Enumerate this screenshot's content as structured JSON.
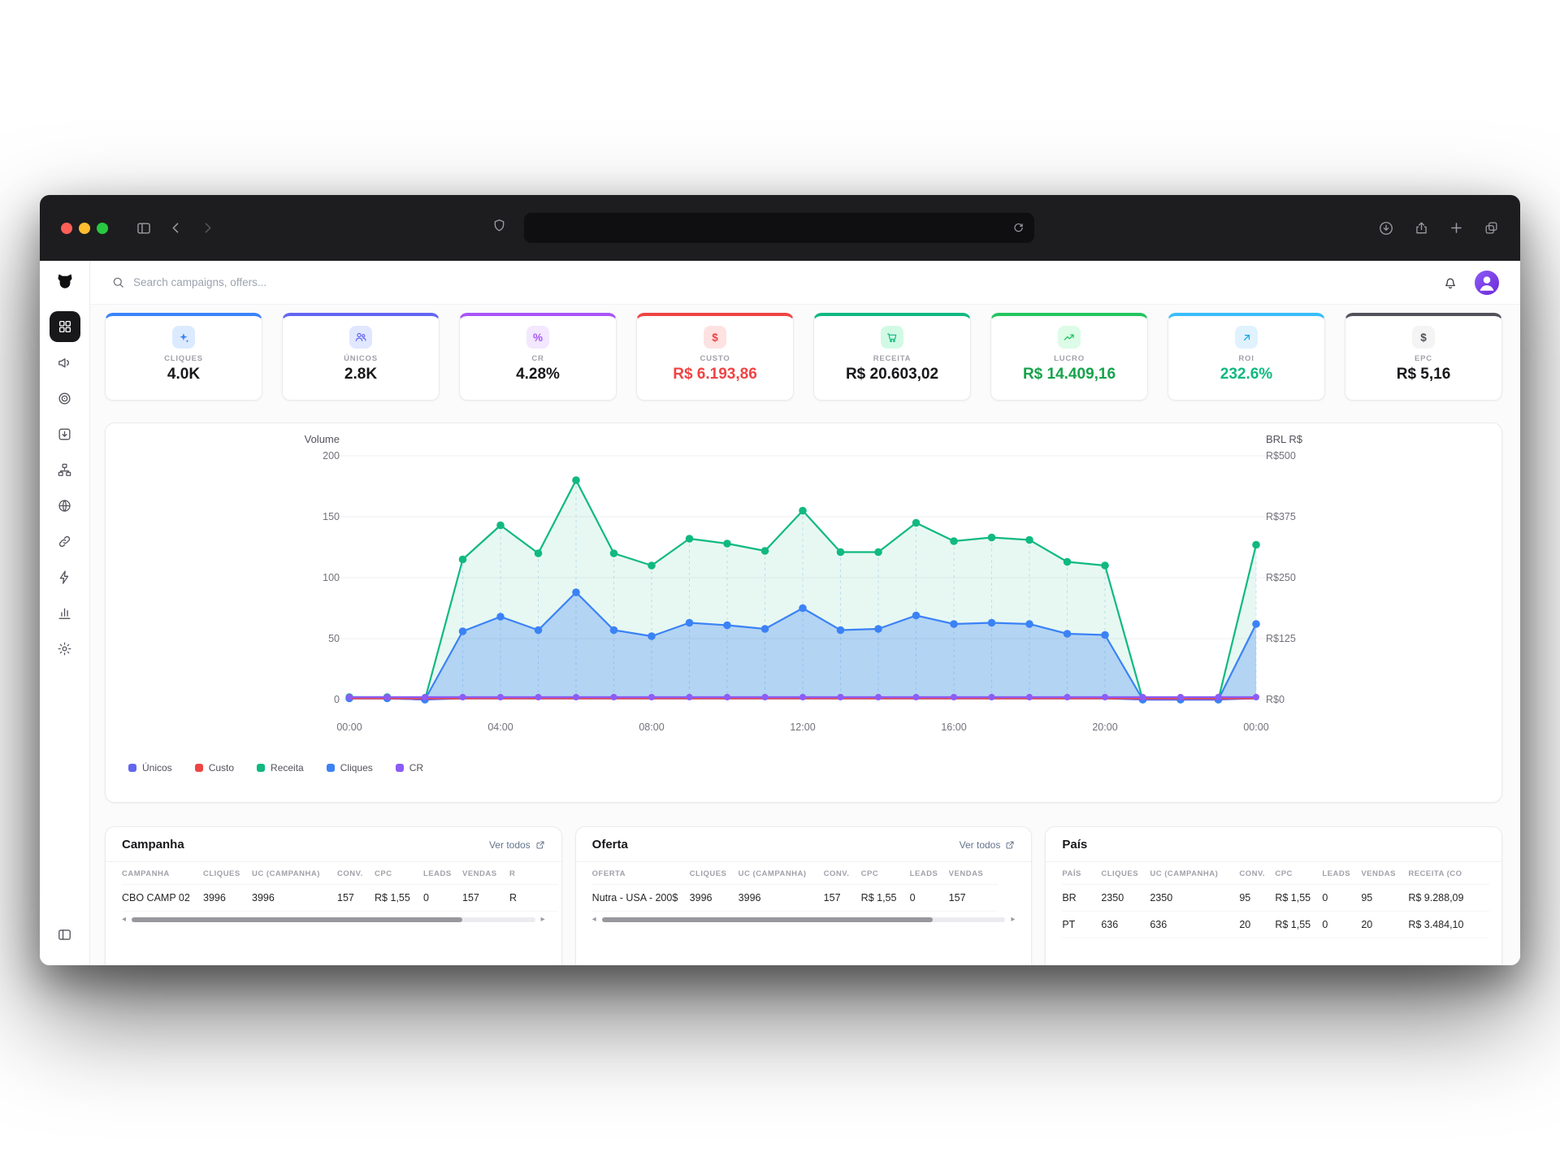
{
  "chrome": {
    "traffic_lights": [
      "#ff5f57",
      "#febc2e",
      "#28c840"
    ],
    "address_value": "",
    "icons": [
      "sidebar-toggle",
      "back",
      "forward",
      "shield",
      "reload",
      "downloads",
      "share",
      "new-tab",
      "tab-overview"
    ]
  },
  "topbar": {
    "search_placeholder": "Search campaigns, offers...",
    "icons": [
      "search",
      "bell",
      "avatar"
    ]
  },
  "sidebar": {
    "logo": "dog-logo",
    "items": [
      "dashboard",
      "campaigns",
      "tracking",
      "integrations",
      "structure",
      "domains",
      "links",
      "automations",
      "reports",
      "settings"
    ],
    "bottom": "collapse-sidebar"
  },
  "kpis": [
    {
      "label": "CLIQUES",
      "value": "4.0K",
      "accent": "#3b82f6",
      "icon": "sparkles-icon",
      "icon_bg": "#dbeafe",
      "icon_color": "#3b82f6",
      "value_color": "#18181b"
    },
    {
      "label": "ÚNICOS",
      "value": "2.8K",
      "accent": "#6366f1",
      "icon": "users-icon",
      "icon_bg": "#e0e7ff",
      "icon_color": "#6366f1",
      "value_color": "#18181b"
    },
    {
      "label": "CR",
      "value": "4.28%",
      "accent": "#a855f7",
      "icon": "percent-icon",
      "icon_glyph": "%",
      "icon_bg": "#f3e8ff",
      "icon_color": "#a855f7",
      "value_color": "#18181b"
    },
    {
      "label": "CUSTO",
      "value": "R$ 6.193,86",
      "accent": "#ef4444",
      "icon": "dollar-icon",
      "icon_glyph": "$",
      "icon_bg": "#fee2e2",
      "icon_color": "#ef4444",
      "value_color": "#ef4444"
    },
    {
      "label": "RECEITA",
      "value": "R$ 20.603,02",
      "accent": "#10b981",
      "icon": "cart-icon",
      "icon_bg": "#d1fae5",
      "icon_color": "#10b981",
      "value_color": "#18181b"
    },
    {
      "label": "LUCRO",
      "value": "R$ 14.409,16",
      "accent": "#22c55e",
      "icon": "trending-up-icon",
      "icon_bg": "#dcfce7",
      "icon_color": "#22c55e",
      "value_color": "#16a34a"
    },
    {
      "label": "ROI",
      "value": "232.6%",
      "accent": "#38bdf8",
      "icon": "arrow-up-right-icon",
      "icon_bg": "#e0f2fe",
      "icon_color": "#0ea5e9",
      "value_color": "#10b981"
    },
    {
      "label": "EPC",
      "value": "R$ 5,16",
      "accent": "#52525b",
      "icon": "dollar-icon",
      "icon_glyph": "$",
      "icon_bg": "#f4f4f5",
      "icon_color": "#52525b",
      "value_color": "#18181b"
    }
  ],
  "chart_data": {
    "type": "area",
    "x_ticks": [
      "00:00",
      "04:00",
      "08:00",
      "12:00",
      "16:00",
      "20:00",
      "00:00"
    ],
    "left_axis": {
      "title": "Volume",
      "max": 200,
      "ticks": [
        0,
        50,
        100,
        150,
        200
      ]
    },
    "right_axis": {
      "title": "BRL R$",
      "ticks": [
        "R$0",
        "R$125",
        "R$250",
        "R$375",
        "R$500"
      ]
    },
    "grid": true,
    "legend_position": "bottom-left",
    "series": [
      {
        "name": "Únicos",
        "color": "#6366f1",
        "dots": false,
        "fill": null,
        "values": [
          1,
          1,
          0,
          1,
          1,
          1,
          1,
          1,
          1,
          1,
          1,
          1,
          1,
          1,
          1,
          1,
          1,
          1,
          1,
          1,
          1,
          0,
          0,
          0,
          1
        ]
      },
      {
        "name": "Custo",
        "color": "#ef4444",
        "dots": false,
        "fill": null,
        "values": [
          1,
          1,
          1,
          1,
          1,
          1,
          1,
          1,
          1,
          1,
          1,
          1,
          1,
          1,
          1,
          1,
          1,
          1,
          1,
          1,
          1,
          1,
          1,
          1,
          1
        ]
      },
      {
        "name": "Receita",
        "color": "#10b981",
        "dots": true,
        "fill": "rgba(16,185,129,0.10)",
        "values": [
          2,
          2,
          0,
          115,
          143,
          120,
          180,
          120,
          110,
          132,
          128,
          122,
          155,
          121,
          121,
          145,
          130,
          133,
          131,
          113,
          110,
          0,
          0,
          0,
          127
        ]
      },
      {
        "name": "Cliques",
        "color": "#3b82f6",
        "dots": true,
        "fill": "rgba(59,130,246,0.30)",
        "values": [
          1,
          1,
          0,
          56,
          68,
          57,
          88,
          57,
          52,
          63,
          61,
          58,
          75,
          57,
          58,
          69,
          62,
          63,
          62,
          54,
          53,
          0,
          0,
          0,
          62
        ]
      },
      {
        "name": "CR",
        "color": "#8b5cf6",
        "dots": true,
        "fill": null,
        "values": [
          2,
          2,
          2,
          2,
          2,
          2,
          2,
          2,
          2,
          2,
          2,
          2,
          2,
          2,
          2,
          2,
          2,
          2,
          2,
          2,
          2,
          2,
          2,
          2,
          2
        ]
      }
    ]
  },
  "tables": [
    {
      "title": "Campanha",
      "link_label": "Ver todos",
      "columns": [
        "CAMPANHA",
        "CLIQUES",
        "UC (CAMPANHA)",
        "CONV.",
        "CPC",
        "LEADS",
        "VENDAS",
        "R"
      ],
      "rows": [
        [
          "CBO CAMP 02",
          "3996",
          "3996",
          "157",
          "R$ 1,55",
          "0",
          "157",
          "R"
        ]
      ]
    },
    {
      "title": "Oferta",
      "link_label": "Ver todos",
      "columns": [
        "OFERTA",
        "CLIQUES",
        "UC (CAMPANHA)",
        "CONV.",
        "CPC",
        "LEADS",
        "VENDAS"
      ],
      "rows": [
        [
          "Nutra - USA - 200$",
          "3996",
          "3996",
          "157",
          "R$ 1,55",
          "0",
          "157"
        ]
      ]
    },
    {
      "title": "País",
      "link_label": null,
      "columns": [
        "PAÍS",
        "CLIQUES",
        "UC (CAMPANHA)",
        "CONV.",
        "CPC",
        "LEADS",
        "VENDAS",
        "RECEITA (CO"
      ],
      "rows": [
        [
          "BR",
          "2350",
          "2350",
          "95",
          "R$ 1,55",
          "0",
          "95",
          "R$ 9.288,09"
        ],
        [
          "PT",
          "636",
          "636",
          "20",
          "R$ 1,55",
          "0",
          "20",
          "R$ 3.484,10"
        ]
      ]
    }
  ]
}
